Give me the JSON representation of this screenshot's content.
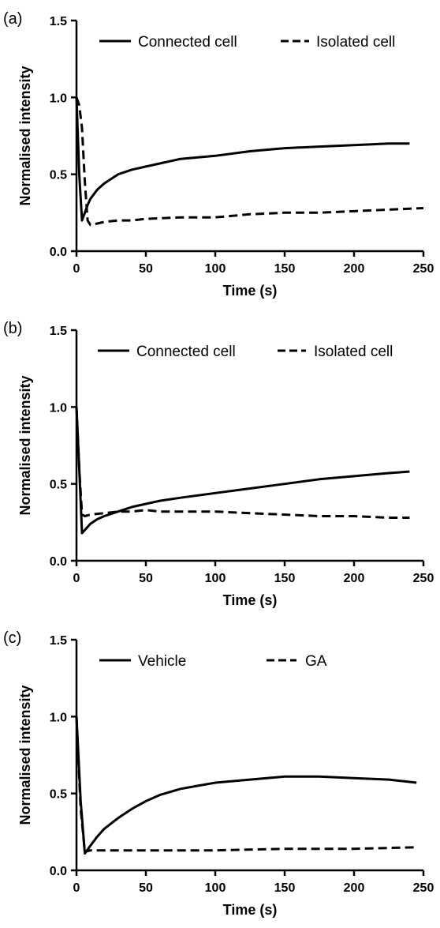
{
  "chart_data": [
    {
      "type": "line",
      "panel_label": "(a)",
      "xlabel": "Time (s)",
      "ylabel": "Normalised intensity",
      "xlim": [
        0,
        250
      ],
      "ylim": [
        0,
        1.5
      ],
      "xticks": [
        "0",
        "50",
        "100",
        "150",
        "200",
        "250"
      ],
      "yticks": [
        "0.0",
        "0.5",
        "1.0",
        "1.5"
      ],
      "legend_position": "top",
      "series": [
        {
          "name": "Connected cell",
          "style": "solid",
          "x": [
            0,
            2,
            4,
            6,
            8,
            10,
            15,
            20,
            25,
            30,
            40,
            50,
            60,
            75,
            100,
            125,
            150,
            175,
            200,
            225,
            240
          ],
          "y": [
            1.0,
            0.5,
            0.2,
            0.25,
            0.3,
            0.34,
            0.4,
            0.44,
            0.47,
            0.5,
            0.53,
            0.55,
            0.57,
            0.6,
            0.62,
            0.65,
            0.67,
            0.68,
            0.69,
            0.7,
            0.7
          ]
        },
        {
          "name": "Isolated cell",
          "style": "dashed",
          "x": [
            0,
            2,
            4,
            6,
            8,
            10,
            15,
            20,
            30,
            40,
            50,
            75,
            100,
            125,
            150,
            175,
            200,
            225,
            250
          ],
          "y": [
            1.0,
            0.95,
            0.8,
            0.45,
            0.2,
            0.17,
            0.18,
            0.19,
            0.2,
            0.2,
            0.21,
            0.22,
            0.22,
            0.24,
            0.25,
            0.25,
            0.26,
            0.27,
            0.28
          ]
        }
      ]
    },
    {
      "type": "line",
      "panel_label": "(b)",
      "xlabel": "Time (s)",
      "ylabel": "Normalised intensity",
      "xlim": [
        0,
        250
      ],
      "ylim": [
        0,
        1.5
      ],
      "xticks": [
        "0",
        "50",
        "100",
        "150",
        "200",
        "250"
      ],
      "yticks": [
        "0.0",
        "0.5",
        "1.0",
        "1.5"
      ],
      "legend_position": "top",
      "series": [
        {
          "name": "Connected cell",
          "style": "solid",
          "x": [
            0,
            2,
            4,
            6,
            10,
            15,
            20,
            30,
            40,
            50,
            60,
            75,
            100,
            125,
            150,
            175,
            200,
            225,
            240
          ],
          "y": [
            1.0,
            0.6,
            0.18,
            0.2,
            0.24,
            0.27,
            0.29,
            0.32,
            0.35,
            0.37,
            0.39,
            0.41,
            0.44,
            0.47,
            0.5,
            0.53,
            0.55,
            0.57,
            0.58
          ]
        },
        {
          "name": "Isolated cell",
          "style": "dashed",
          "x": [
            0,
            2,
            4,
            6,
            10,
            20,
            30,
            40,
            50,
            60,
            75,
            100,
            125,
            150,
            175,
            200,
            225,
            240
          ],
          "y": [
            1.0,
            0.6,
            0.3,
            0.29,
            0.3,
            0.31,
            0.32,
            0.32,
            0.33,
            0.32,
            0.32,
            0.32,
            0.31,
            0.3,
            0.29,
            0.29,
            0.28,
            0.28
          ]
        }
      ]
    },
    {
      "type": "line",
      "panel_label": "(c)",
      "xlabel": "Time (s)",
      "ylabel": "Normalised intensity",
      "xlim": [
        0,
        250
      ],
      "ylim": [
        0,
        1.5
      ],
      "xticks": [
        "0",
        "50",
        "100",
        "150",
        "200",
        "250"
      ],
      "yticks": [
        "0.0",
        "0.5",
        "1.0",
        "1.5"
      ],
      "legend_position": "top",
      "series": [
        {
          "name": "Vehicle",
          "style": "solid",
          "x": [
            0,
            3,
            6,
            10,
            15,
            20,
            30,
            40,
            50,
            60,
            75,
            100,
            125,
            150,
            175,
            200,
            225,
            245
          ],
          "y": [
            1.0,
            0.45,
            0.11,
            0.16,
            0.22,
            0.27,
            0.34,
            0.4,
            0.45,
            0.49,
            0.53,
            0.57,
            0.59,
            0.61,
            0.61,
            0.6,
            0.59,
            0.57
          ]
        },
        {
          "name": "GA",
          "style": "dashed",
          "x": [
            0,
            3,
            6,
            10,
            15,
            25,
            50,
            100,
            150,
            200,
            245
          ],
          "y": [
            1.0,
            0.4,
            0.12,
            0.13,
            0.13,
            0.13,
            0.13,
            0.13,
            0.14,
            0.14,
            0.15
          ]
        }
      ]
    }
  ]
}
